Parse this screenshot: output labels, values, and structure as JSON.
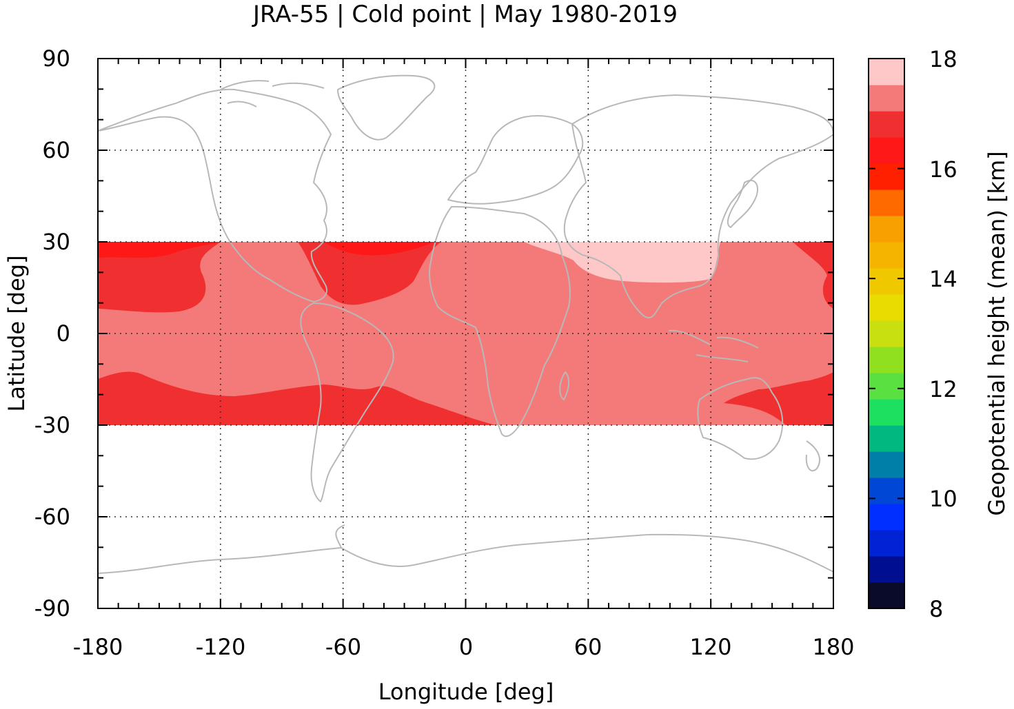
{
  "chart_data": {
    "type": "heatmap",
    "title": "JRA-55 | Cold point | May 1980-2019",
    "xlabel": "Longitude [deg]",
    "ylabel": "Latitude [deg]",
    "xlim": [
      -180,
      180
    ],
    "ylim": [
      -90,
      90
    ],
    "xticks": [
      -180,
      -120,
      -60,
      0,
      60,
      120,
      180
    ],
    "xtick_labels": [
      "-180",
      "-120",
      "-60",
      "0",
      "60",
      "120",
      "180"
    ],
    "yticks": [
      90,
      60,
      30,
      0,
      -30,
      -60,
      -90
    ],
    "ytick_labels": [
      "90",
      "60",
      "30",
      "0",
      "-30",
      "-60",
      "-90"
    ],
    "grid": true,
    "data_lat_range": [
      -30,
      30
    ],
    "colorbar": {
      "label": "Geopotential height (mean) [km]",
      "range": [
        8,
        18
      ],
      "ticks": [
        18,
        16,
        14,
        12,
        10,
        8
      ],
      "tick_labels": [
        "18",
        "16",
        "14",
        "12",
        "10",
        "8"
      ],
      "colors": [
        "#0a0a2a",
        "#000e90",
        "#0023d6",
        "#0030ff",
        "#0047d6",
        "#0080a8",
        "#00b880",
        "#1ee060",
        "#5ae040",
        "#90e020",
        "#c8e010",
        "#e8dc00",
        "#f0c800",
        "#f4b400",
        "#f8a000",
        "#ff6a00",
        "#ff2000",
        "#ff1818",
        "#f03030",
        "#f47a7a",
        "#ffc8c8"
      ]
    },
    "regions": [
      {
        "label": "16.75-17.25 km",
        "color": "#f47a7a",
        "extent": "tropical band background"
      },
      {
        "label": "16.25-16.75 km",
        "color": "#f03030",
        "extent": "subtropics, Pacific and Atlantic"
      },
      {
        "label": "15.75-16.25 km",
        "color": "#ff1818",
        "extent": "northern edge near 30N"
      },
      {
        "label": "17.25-17.75 km",
        "color": "#ffc8c8",
        "extent": "Asian region 30-130E, 18-30N"
      }
    ],
    "coastline_color": "#b8b8b8"
  }
}
